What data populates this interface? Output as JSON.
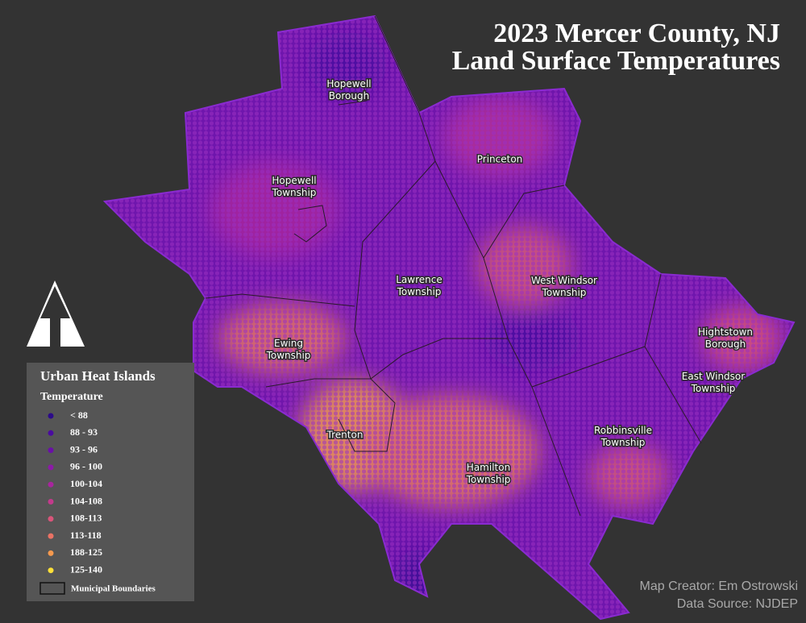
{
  "title": [
    "2023 Mercer County, NJ",
    "Land Surface Temperatures"
  ],
  "places": [
    {
      "lines": [
        "Hopewell",
        "Borough"
      ]
    },
    {
      "lines": [
        "Hopewell",
        "Township"
      ]
    },
    {
      "lines": [
        "Princeton"
      ]
    },
    {
      "lines": [
        "Lawrence",
        "Township"
      ]
    },
    {
      "lines": [
        "West Windsor",
        "Township"
      ]
    },
    {
      "lines": [
        "Ewing",
        "Township"
      ]
    },
    {
      "lines": [
        "Hightstown",
        "Borough"
      ]
    },
    {
      "lines": [
        "East Windsor",
        "Township"
      ]
    },
    {
      "lines": [
        "Trenton"
      ]
    },
    {
      "lines": [
        "Robbinsville",
        "Township"
      ]
    },
    {
      "lines": [
        "Hamilton",
        "Township"
      ]
    }
  ],
  "legend": {
    "title": "Urban Heat Islands",
    "subtitle": "Temperature",
    "items": [
      {
        "label": "< 88",
        "color": "#2c0a8a"
      },
      {
        "label": "88 - 93",
        "color": "#4a0ba0"
      },
      {
        "label": "93 - 96",
        "color": "#6a10a8"
      },
      {
        "label": "96 - 100",
        "color": "#8c1aa8"
      },
      {
        "label": "100-104",
        "color": "#a8259e"
      },
      {
        "label": "104-108",
        "color": "#c33a8c"
      },
      {
        "label": "108-113",
        "color": "#d9557a"
      },
      {
        "label": "113-118",
        "color": "#ea7264"
      },
      {
        "label": "188-125",
        "color": "#f5994e"
      },
      {
        "label": "125-140",
        "color": "#fde038"
      }
    ],
    "boundary_label": "Municipal Boundaries"
  },
  "credits": [
    "Map Creator: Em Ostrowski",
    "Data Source: NJDEP"
  ]
}
